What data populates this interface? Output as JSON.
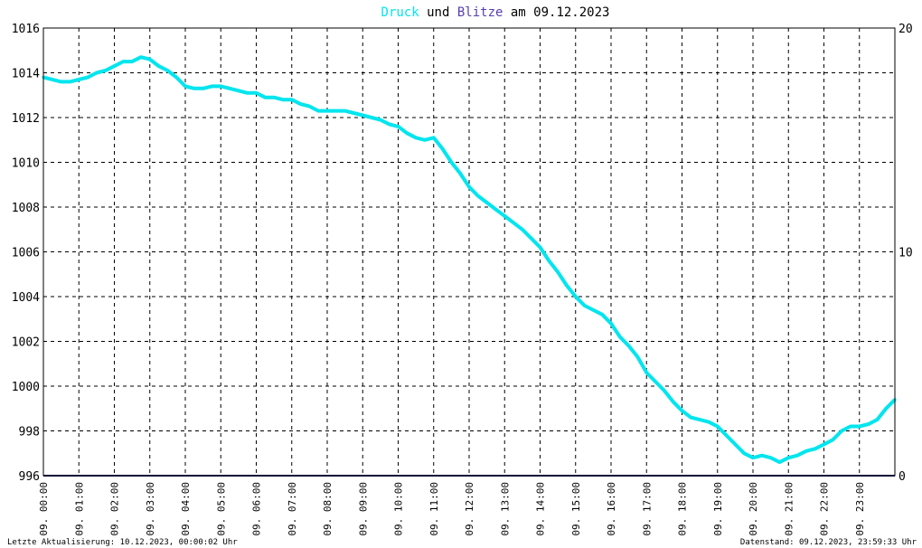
{
  "header": {
    "title_part1": "Druck",
    "title_part2": " und ",
    "title_part3": "Blitze",
    "title_part4": " am 09.12.2023",
    "color_druck": "#00e5ee",
    "color_blitze": "#5a3fb0",
    "color_text": "#000000"
  },
  "footer": {
    "left": "Letzte Aktualisierung: 10.12.2023, 00:00:02 Uhr",
    "right": "Datenstand: 09.12.2023, 23:59:33 Uhr"
  },
  "chart_data": {
    "type": "line",
    "title": "Druck und Blitze am 09.12.2023",
    "xlabel": "",
    "ylabel": "",
    "x_unit": "hours",
    "xlim": [
      0,
      24
    ],
    "ylim": [
      996,
      1016
    ],
    "y2lim": [
      0,
      20
    ],
    "grid": true,
    "y_ticks": [
      "996",
      "998",
      "1000",
      "1002",
      "1004",
      "1006",
      "1008",
      "1010",
      "1012",
      "1014",
      "1016"
    ],
    "y2_ticks": [
      "0",
      "10",
      "20"
    ],
    "x_ticks": [
      "09. 00:00",
      "09. 01:00",
      "09. 02:00",
      "09. 03:00",
      "09. 04:00",
      "09. 05:00",
      "09. 06:00",
      "09. 07:00",
      "09. 08:00",
      "09. 09:00",
      "09. 10:00",
      "09. 11:00",
      "09. 12:00",
      "09. 13:00",
      "09. 14:00",
      "09. 15:00",
      "09. 16:00",
      "09. 17:00",
      "09. 18:00",
      "09. 19:00",
      "09. 20:00",
      "09. 21:00",
      "09. 22:00",
      "09. 23:00"
    ],
    "series": [
      {
        "name": "Druck",
        "color": "#00e5ee",
        "points": [
          [
            0.0,
            1013.8
          ],
          [
            0.25,
            1013.7
          ],
          [
            0.5,
            1013.6
          ],
          [
            0.75,
            1013.6
          ],
          [
            1.0,
            1013.7
          ],
          [
            1.25,
            1013.8
          ],
          [
            1.5,
            1014.0
          ],
          [
            1.75,
            1014.1
          ],
          [
            2.0,
            1014.3
          ],
          [
            2.25,
            1014.5
          ],
          [
            2.5,
            1014.5
          ],
          [
            2.75,
            1014.7
          ],
          [
            3.0,
            1014.6
          ],
          [
            3.25,
            1014.3
          ],
          [
            3.5,
            1014.1
          ],
          [
            3.75,
            1013.8
          ],
          [
            4.0,
            1013.4
          ],
          [
            4.25,
            1013.3
          ],
          [
            4.5,
            1013.3
          ],
          [
            4.75,
            1013.4
          ],
          [
            5.0,
            1013.4
          ],
          [
            5.25,
            1013.3
          ],
          [
            5.5,
            1013.2
          ],
          [
            5.75,
            1013.1
          ],
          [
            6.0,
            1013.1
          ],
          [
            6.25,
            1012.9
          ],
          [
            6.5,
            1012.9
          ],
          [
            6.75,
            1012.8
          ],
          [
            7.0,
            1012.8
          ],
          [
            7.25,
            1012.6
          ],
          [
            7.5,
            1012.5
          ],
          [
            7.75,
            1012.3
          ],
          [
            8.0,
            1012.3
          ],
          [
            8.25,
            1012.3
          ],
          [
            8.5,
            1012.3
          ],
          [
            8.75,
            1012.2
          ],
          [
            9.0,
            1012.1
          ],
          [
            9.25,
            1012.0
          ],
          [
            9.5,
            1011.9
          ],
          [
            9.75,
            1011.7
          ],
          [
            10.0,
            1011.6
          ],
          [
            10.25,
            1011.3
          ],
          [
            10.5,
            1011.1
          ],
          [
            10.75,
            1011.0
          ],
          [
            11.0,
            1011.1
          ],
          [
            11.25,
            1010.6
          ],
          [
            11.5,
            1010.0
          ],
          [
            11.75,
            1009.5
          ],
          [
            12.0,
            1008.9
          ],
          [
            12.25,
            1008.5
          ],
          [
            12.5,
            1008.2
          ],
          [
            12.75,
            1007.9
          ],
          [
            13.0,
            1007.6
          ],
          [
            13.25,
            1007.3
          ],
          [
            13.5,
            1007.0
          ],
          [
            13.75,
            1006.6
          ],
          [
            14.0,
            1006.2
          ],
          [
            14.25,
            1005.6
          ],
          [
            14.5,
            1005.1
          ],
          [
            14.75,
            1004.5
          ],
          [
            15.0,
            1004.0
          ],
          [
            15.25,
            1003.6
          ],
          [
            15.5,
            1003.4
          ],
          [
            15.75,
            1003.2
          ],
          [
            16.0,
            1002.8
          ],
          [
            16.25,
            1002.2
          ],
          [
            16.5,
            1001.8
          ],
          [
            16.75,
            1001.3
          ],
          [
            17.0,
            1000.6
          ],
          [
            17.25,
            1000.2
          ],
          [
            17.5,
            999.8
          ],
          [
            17.75,
            999.3
          ],
          [
            18.0,
            998.9
          ],
          [
            18.25,
            998.6
          ],
          [
            18.5,
            998.5
          ],
          [
            18.75,
            998.4
          ],
          [
            19.0,
            998.2
          ],
          [
            19.25,
            997.8
          ],
          [
            19.5,
            997.4
          ],
          [
            19.75,
            997.0
          ],
          [
            20.0,
            996.8
          ],
          [
            20.25,
            996.9
          ],
          [
            20.5,
            996.8
          ],
          [
            20.75,
            996.6
          ],
          [
            21.0,
            996.8
          ],
          [
            21.25,
            996.9
          ],
          [
            21.5,
            997.1
          ],
          [
            21.75,
            997.2
          ],
          [
            22.0,
            997.4
          ],
          [
            22.25,
            997.6
          ],
          [
            22.5,
            998.0
          ],
          [
            22.75,
            998.2
          ],
          [
            23.0,
            998.2
          ],
          [
            23.25,
            998.3
          ],
          [
            23.5,
            998.5
          ],
          [
            23.75,
            999.0
          ],
          [
            24.0,
            999.4
          ]
        ]
      },
      {
        "name": "Blitze",
        "color": "#1a1a6e",
        "axis": "right",
        "points": [
          [
            0,
            0
          ],
          [
            24,
            0
          ]
        ]
      }
    ]
  }
}
